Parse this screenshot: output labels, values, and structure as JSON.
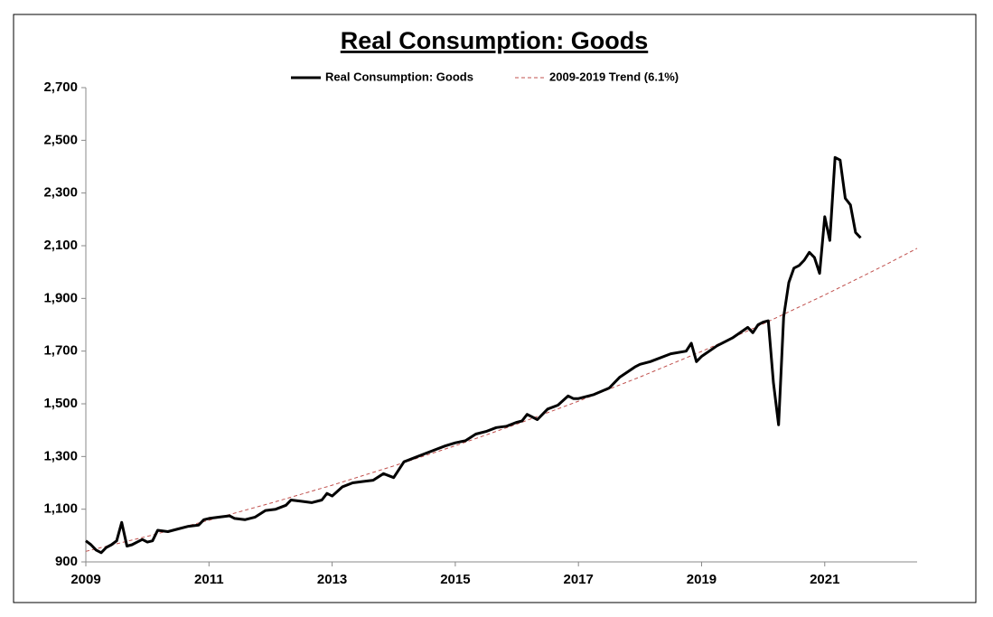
{
  "chart_data": {
    "type": "line",
    "title": "Real Consumption: Goods",
    "xlim": [
      2009,
      2022.5
    ],
    "xticks": [
      2009,
      2011,
      2013,
      2015,
      2017,
      2019,
      2021
    ],
    "ylim": [
      900,
      2700
    ],
    "yticks": [
      {
        "value": 900,
        "label": "900"
      },
      {
        "value": 1100,
        "label": "1,100"
      },
      {
        "value": 1300,
        "label": "1,300"
      },
      {
        "value": 1500,
        "label": "1,500"
      },
      {
        "value": 1700,
        "label": "1,700"
      },
      {
        "value": 1900,
        "label": "1,900"
      },
      {
        "value": 2100,
        "label": "2,100"
      },
      {
        "value": 2300,
        "label": "2,300"
      },
      {
        "value": 2500,
        "label": "2,500"
      },
      {
        "value": 2700,
        "label": "2,700"
      }
    ],
    "legend": "top",
    "series": [
      {
        "name": "Real Consumption: Goods",
        "color": "#000000",
        "style": "solid",
        "x": [
          2009.0,
          2009.083,
          2009.167,
          2009.25,
          2009.333,
          2009.417,
          2009.5,
          2009.583,
          2009.667,
          2009.75,
          2009.833,
          2009.917,
          2010.0,
          2010.083,
          2010.167,
          2010.333,
          2010.5,
          2010.667,
          2010.833,
          2010.917,
          2011.0,
          2011.167,
          2011.333,
          2011.417,
          2011.583,
          2011.75,
          2011.917,
          2012.083,
          2012.25,
          2012.333,
          2012.5,
          2012.667,
          2012.833,
          2012.917,
          2013.0,
          2013.167,
          2013.333,
          2013.5,
          2013.667,
          2013.833,
          2014.0,
          2014.083,
          2014.167,
          2014.333,
          2014.5,
          2014.667,
          2014.833,
          2015.0,
          2015.167,
          2015.333,
          2015.5,
          2015.667,
          2015.833,
          2016.0,
          2016.083,
          2016.167,
          2016.333,
          2016.5,
          2016.667,
          2016.833,
          2016.917,
          2017.0,
          2017.25,
          2017.5,
          2017.667,
          2017.917,
          2018.0,
          2018.167,
          2018.5,
          2018.75,
          2018.833,
          2018.917,
          2019.0,
          2019.25,
          2019.5,
          2019.75,
          2019.833,
          2019.917,
          2020.0,
          2020.083,
          2020.167,
          2020.25,
          2020.333,
          2020.417,
          2020.5,
          2020.583,
          2020.667,
          2020.75,
          2020.833,
          2020.917,
          2021.0,
          2021.083,
          2021.167,
          2021.25,
          2021.333,
          2021.417,
          2021.5,
          2021.583
        ],
        "values": [
          980,
          965,
          945,
          935,
          955,
          965,
          980,
          1050,
          960,
          965,
          975,
          985,
          975,
          980,
          1020,
          1015,
          1025,
          1035,
          1040,
          1060,
          1065,
          1070,
          1075,
          1065,
          1060,
          1070,
          1095,
          1100,
          1115,
          1135,
          1130,
          1125,
          1135,
          1160,
          1150,
          1185,
          1200,
          1205,
          1210,
          1235,
          1220,
          1250,
          1280,
          1295,
          1310,
          1325,
          1340,
          1352,
          1360,
          1385,
          1395,
          1410,
          1415,
          1430,
          1435,
          1460,
          1440,
          1480,
          1495,
          1530,
          1520,
          1520,
          1535,
          1560,
          1600,
          1640,
          1650,
          1660,
          1690,
          1700,
          1730,
          1660,
          1680,
          1720,
          1750,
          1790,
          1770,
          1800,
          1810,
          1815,
          1580,
          1420,
          1830,
          1960,
          2015,
          2025,
          2045,
          2075,
          2055,
          1995,
          2210,
          2120,
          2435,
          2425,
          2280,
          2255,
          2150,
          2130
        ]
      },
      {
        "name": "2009-2019 Trend (6.1%)",
        "color": "#c0504d",
        "style": "dashed",
        "x": [
          2009,
          2010,
          2011,
          2012,
          2013,
          2014,
          2015,
          2016,
          2017,
          2018,
          2019,
          2020,
          2021,
          2022,
          2022.5
        ],
        "values": [
          940,
          997,
          1058,
          1123,
          1191,
          1264,
          1341,
          1423,
          1510,
          1602,
          1699,
          1803,
          1913,
          2029,
          2090
        ]
      }
    ]
  }
}
